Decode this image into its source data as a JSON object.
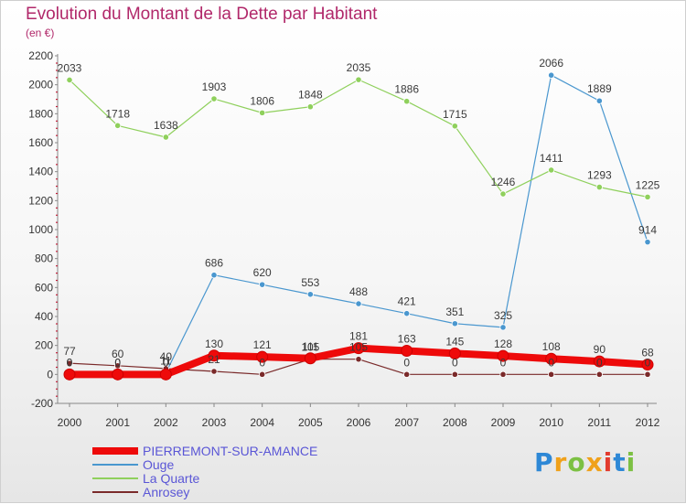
{
  "title": "Evolution du Montant de la Dette par Habitant",
  "subtitle": "(en €)",
  "logo_text": "Proxiti",
  "colors": {
    "title": "#b1286a",
    "logo": [
      "#2e88d6",
      "#f0a11a",
      "#7cc043",
      "#f0a11a",
      "#e23b2e",
      "#2e88d6",
      "#7cc043"
    ]
  },
  "chart_data": {
    "type": "line",
    "categories": [
      "2000",
      "2001",
      "2002",
      "2003",
      "2004",
      "2005",
      "2006",
      "2007",
      "2008",
      "2009",
      "2010",
      "2011",
      "2012"
    ],
    "ylim": [
      -200,
      2200
    ],
    "yticks": [
      -200,
      0,
      200,
      400,
      600,
      800,
      1000,
      1200,
      1400,
      1600,
      1800,
      2000,
      2200
    ],
    "grid": false,
    "legend_position": "bottom-left",
    "series": [
      {
        "name": "Ouge",
        "color": "#4a97cf",
        "values": [
          0,
          0,
          11,
          686,
          620,
          553,
          488,
          421,
          351,
          325,
          2066,
          1889,
          914
        ],
        "labels": [
          "0",
          "0",
          "11",
          "686",
          "620",
          "553",
          "488",
          "421",
          "351",
          "325",
          "2066",
          "1889",
          "914"
        ]
      },
      {
        "name": "La Quarte",
        "color": "#8fd05c",
        "values": [
          2033,
          1718,
          1638,
          1903,
          1806,
          1848,
          2035,
          1886,
          1715,
          1246,
          1411,
          1293,
          1225
        ],
        "labels": [
          "2033",
          "1718",
          "1638",
          "1903",
          "1806",
          "1848",
          "2035",
          "1886",
          "1715",
          "1246",
          "1411",
          "1293",
          "1225"
        ]
      },
      {
        "name": "Anrosey",
        "color": "#7a2a2a",
        "values": [
          77,
          60,
          40,
          21,
          0,
          105,
          105,
          0,
          0,
          0,
          0,
          0,
          0
        ],
        "labels": [
          "77",
          "60",
          "40",
          "21",
          "0",
          "105",
          "105",
          "0",
          "0",
          "0",
          "0",
          "0",
          "0"
        ]
      },
      {
        "name": "PIERREMONT-SUR-AMANCE",
        "color": "#ee0a0a",
        "values": [
          0,
          0,
          0,
          130,
          121,
          111,
          181,
          163,
          145,
          128,
          108,
          90,
          68
        ],
        "labels": [
          "0",
          "0",
          "0",
          "130",
          "121",
          "111",
          "181",
          "163",
          "145",
          "128",
          "108",
          "90",
          "68"
        ]
      }
    ]
  },
  "legend": [
    {
      "label": "PIERREMONT-SUR-AMANCE",
      "color": "#ee0a0a",
      "text_color": "#5a56d6",
      "thick": true
    },
    {
      "label": "Ouge",
      "color": "#4a97cf",
      "text_color": "#5a56d6",
      "thick": false
    },
    {
      "label": "La Quarte",
      "color": "#8fd05c",
      "text_color": "#5a56d6",
      "thick": false
    },
    {
      "label": "Anrosey",
      "color": "#7a2a2a",
      "text_color": "#5a56d6",
      "thick": false
    }
  ]
}
